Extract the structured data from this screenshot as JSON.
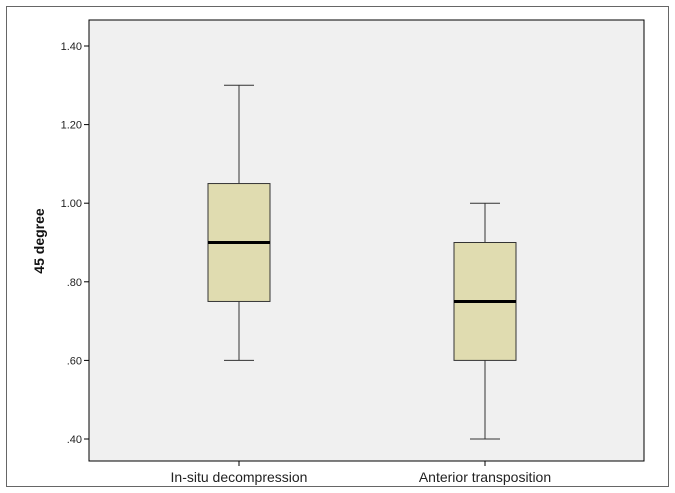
{
  "chart_data": {
    "type": "boxplot",
    "title": "",
    "xlabel": "",
    "ylabel": "45 degree",
    "ylim": [
      0.35,
      1.45
    ],
    "yticks": [
      0.4,
      0.6,
      0.8,
      1.0,
      1.2,
      1.4
    ],
    "ytick_labels": [
      ".40",
      ".60",
      ".80",
      "1.00",
      "1.20",
      "1.40"
    ],
    "categories": [
      "In-situ decompression",
      "Anterior transposition"
    ],
    "boxes": [
      {
        "whisker_low": 0.6,
        "q1": 0.75,
        "median": 0.9,
        "q3": 1.05,
        "whisker_high": 1.3
      },
      {
        "whisker_low": 0.4,
        "q1": 0.6,
        "median": 0.75,
        "q3": 0.9,
        "whisker_high": 1.0
      }
    ],
    "grid": false,
    "colors": {
      "plot_background": "#f0f0f0",
      "box_fill": "#e0dcb0",
      "box_stroke": "#333333",
      "median": "#000000",
      "frame": "#000000"
    }
  }
}
